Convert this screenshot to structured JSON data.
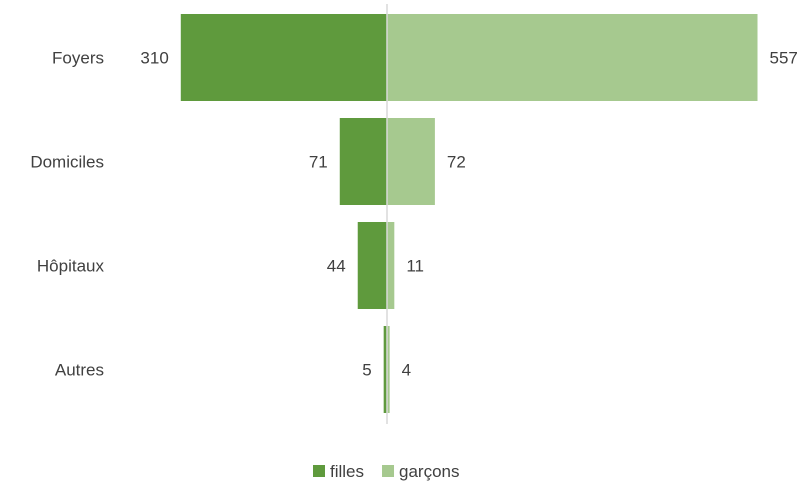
{
  "chart_data": {
    "type": "bar",
    "orientation": "horizontal-diverging",
    "categories": [
      "Foyers",
      "Domiciles",
      "Hôpitaux",
      "Autres"
    ],
    "series": [
      {
        "name": "filles",
        "values": [
          310,
          71,
          44,
          5
        ],
        "color": "#5f9a3d",
        "side": "left"
      },
      {
        "name": "garçons",
        "values": [
          557,
          72,
          11,
          4
        ],
        "color": "#a6c98f",
        "side": "right"
      }
    ],
    "axis_line_color": "#d9d9d9",
    "legend_position": "bottom",
    "grid": false
  }
}
